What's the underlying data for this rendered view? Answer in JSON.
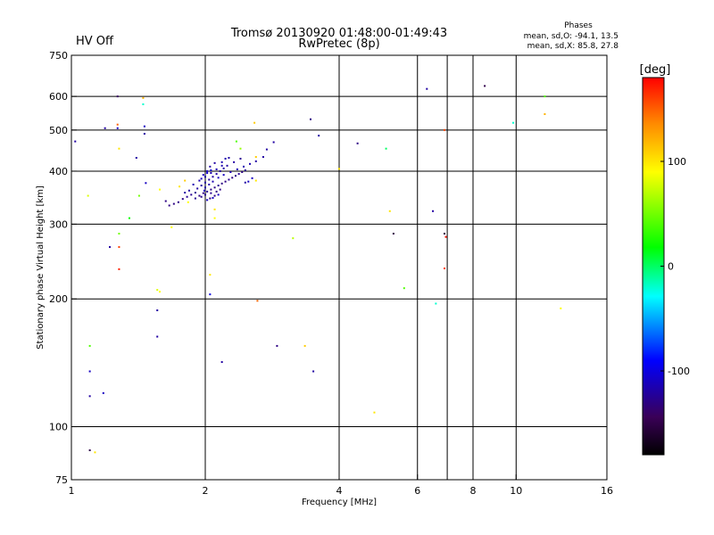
{
  "status_label": "HV Off",
  "status_color": "#cc0000",
  "title_line1": "Tromsø 20130920 01:48:00-01:49:43",
  "title_line2": "RwPretec (8p)",
  "phases": {
    "heading": "Phases",
    "line_o": "mean, sd,O: -94.1, 13.5",
    "line_x": "mean, sd,X:  85.8, 27.8"
  },
  "chart_data": {
    "type": "scatter",
    "xscale": "log2",
    "yscale": "log",
    "xlabel": "Frequency [MHz]",
    "ylabel": "Stationary phase Virtual Height [km]",
    "xlim": [
      1,
      16
    ],
    "ylim": [
      75,
      750
    ],
    "x_ticks": [
      1,
      2,
      4,
      6,
      8,
      10,
      16
    ],
    "x_grid": [
      2,
      4,
      6,
      7,
      8,
      10
    ],
    "y_ticks": [
      75,
      100,
      200,
      300,
      400,
      500,
      600,
      750
    ],
    "y_grid": [
      100,
      200,
      300,
      400,
      500,
      600
    ],
    "colorbar": {
      "label": "[deg]",
      "range": [
        -180,
        180
      ],
      "ticks": [
        100,
        0,
        -100
      ]
    },
    "points": [
      [
        1.02,
        470,
        -120
      ],
      [
        1.09,
        350,
        80
      ],
      [
        1.1,
        155,
        40
      ],
      [
        1.1,
        135,
        -110
      ],
      [
        1.1,
        118,
        -120
      ],
      [
        1.1,
        88,
        -150
      ],
      [
        1.13,
        87,
        100
      ],
      [
        1.18,
        120,
        -110
      ],
      [
        1.19,
        505,
        -120
      ],
      [
        1.22,
        265,
        -120
      ],
      [
        1.27,
        600,
        -140
      ],
      [
        1.27,
        515,
        150
      ],
      [
        1.27,
        505,
        -110
      ],
      [
        1.28,
        452,
        100
      ],
      [
        1.28,
        285,
        50
      ],
      [
        1.28,
        265,
        160
      ],
      [
        1.28,
        235,
        170
      ],
      [
        1.35,
        310,
        20
      ],
      [
        1.4,
        430,
        -120
      ],
      [
        1.42,
        350,
        50
      ],
      [
        1.45,
        595,
        120
      ],
      [
        1.45,
        575,
        -20
      ],
      [
        1.46,
        510,
        -110
      ],
      [
        1.46,
        490,
        -120
      ],
      [
        1.47,
        375,
        -110
      ],
      [
        1.56,
        210,
        80
      ],
      [
        1.58,
        208,
        90
      ],
      [
        1.56,
        188,
        -120
      ],
      [
        1.56,
        163,
        -120
      ],
      [
        1.58,
        362,
        90
      ],
      [
        1.68,
        295,
        90
      ],
      [
        1.75,
        368,
        100
      ],
      [
        1.8,
        380,
        110
      ],
      [
        1.83,
        338,
        90
      ],
      [
        2.05,
        228,
        100
      ],
      [
        2.05,
        205,
        -100
      ],
      [
        2.1,
        325,
        100
      ],
      [
        2.1,
        310,
        90
      ],
      [
        2.18,
        142,
        -120
      ],
      [
        2.35,
        470,
        40
      ],
      [
        2.4,
        452,
        60
      ],
      [
        2.58,
        520,
        110
      ],
      [
        2.6,
        432,
        110
      ],
      [
        2.6,
        380,
        100
      ],
      [
        2.62,
        198,
        150
      ],
      [
        2.85,
        468,
        -120
      ],
      [
        2.9,
        155,
        -130
      ],
      [
        3.15,
        278,
        70
      ],
      [
        3.35,
        155,
        110
      ],
      [
        3.45,
        530,
        -130
      ],
      [
        3.5,
        135,
        -120
      ],
      [
        3.6,
        485,
        -120
      ],
      [
        4.0,
        405,
        100
      ],
      [
        4.4,
        465,
        -130
      ],
      [
        4.8,
        108,
        100
      ],
      [
        5.1,
        452,
        0
      ],
      [
        5.2,
        322,
        100
      ],
      [
        5.3,
        285,
        -150
      ],
      [
        5.6,
        212,
        40
      ],
      [
        6.3,
        625,
        -120
      ],
      [
        6.5,
        322,
        -120
      ],
      [
        6.6,
        195,
        -20
      ],
      [
        6.9,
        500,
        160
      ],
      [
        6.9,
        285,
        -150
      ],
      [
        6.95,
        280,
        175
      ],
      [
        6.9,
        236,
        160
      ],
      [
        8.5,
        635,
        -150
      ],
      [
        9.85,
        520,
        -20
      ],
      [
        11.6,
        600,
        40
      ],
      [
        11.6,
        545,
        120
      ],
      [
        12.6,
        190,
        90
      ],
      [
        1.63,
        340,
        -130
      ],
      [
        1.66,
        332,
        -130
      ],
      [
        1.7,
        335,
        -130
      ],
      [
        1.74,
        338,
        -130
      ],
      [
        1.78,
        344,
        -130
      ],
      [
        1.82,
        348,
        -125
      ],
      [
        1.86,
        352,
        -125
      ],
      [
        1.9,
        356,
        -125
      ],
      [
        1.94,
        350,
        -130
      ],
      [
        1.98,
        355,
        -130
      ],
      [
        2.02,
        358,
        -125
      ],
      [
        2.06,
        362,
        -130
      ],
      [
        2.1,
        366,
        -130
      ],
      [
        2.14,
        370,
        -125
      ],
      [
        2.18,
        374,
        -130
      ],
      [
        2.22,
        378,
        -130
      ],
      [
        2.26,
        382,
        -125
      ],
      [
        2.3,
        386,
        -130
      ],
      [
        2.34,
        390,
        -130
      ],
      [
        2.38,
        394,
        -125
      ],
      [
        2.42,
        398,
        -130
      ],
      [
        2.46,
        402,
        -125
      ],
      [
        1.92,
        364,
        -120
      ],
      [
        1.96,
        370,
        -120
      ],
      [
        2.0,
        376,
        -120
      ],
      [
        2.04,
        382,
        -120
      ],
      [
        2.08,
        388,
        -120
      ],
      [
        2.12,
        394,
        -120
      ],
      [
        2.16,
        400,
        -120
      ],
      [
        2.2,
        406,
        -120
      ],
      [
        2.24,
        412,
        -120
      ],
      [
        1.88,
        372,
        -115
      ],
      [
        1.94,
        380,
        -115
      ],
      [
        2.0,
        388,
        -115
      ],
      [
        2.06,
        396,
        -115
      ],
      [
        2.12,
        404,
        -115
      ],
      [
        2.18,
        412,
        -115
      ],
      [
        2.1,
        418,
        -120
      ],
      [
        2.05,
        410,
        -120
      ],
      [
        2.02,
        400,
        -110
      ],
      [
        1.98,
        392,
        -110
      ],
      [
        1.96,
        384,
        -110
      ],
      [
        2.0,
        366,
        -115
      ],
      [
        2.04,
        372,
        -115
      ],
      [
        2.08,
        378,
        -115
      ],
      [
        2.14,
        386,
        -110
      ],
      [
        2.2,
        392,
        -110
      ],
      [
        2.28,
        398,
        -115
      ],
      [
        2.36,
        404,
        -115
      ],
      [
        2.44,
        410,
        -115
      ],
      [
        2.52,
        416,
        -115
      ],
      [
        2.6,
        422,
        -120
      ],
      [
        2.7,
        432,
        -120
      ],
      [
        2.75,
        450,
        -120
      ],
      [
        2.55,
        385,
        -110
      ],
      [
        2.5,
        378,
        -110
      ],
      [
        2.46,
        376,
        -120
      ],
      [
        1.9,
        345,
        -125
      ],
      [
        1.96,
        348,
        -125
      ],
      [
        2.0,
        352,
        -125
      ],
      [
        2.06,
        355,
        -125
      ],
      [
        2.12,
        358,
        -130
      ],
      [
        2.16,
        362,
        -130
      ],
      [
        2.05,
        345,
        -130
      ],
      [
        2.1,
        350,
        -130
      ],
      [
        1.84,
        360,
        -120
      ],
      [
        1.8,
        356,
        -120
      ],
      [
        2.18,
        420,
        -115
      ],
      [
        2.22,
        428,
        -115
      ],
      [
        2.26,
        430,
        -120
      ],
      [
        2.32,
        420,
        -120
      ],
      [
        2.4,
        428,
        -125
      ],
      [
        2.02,
        396,
        -105
      ],
      [
        2.06,
        402,
        -105
      ],
      [
        1.99,
        360,
        -110
      ],
      [
        2.02,
        342,
        -110
      ],
      [
        2.08,
        346,
        -110
      ],
      [
        2.14,
        352,
        -110
      ]
    ]
  }
}
